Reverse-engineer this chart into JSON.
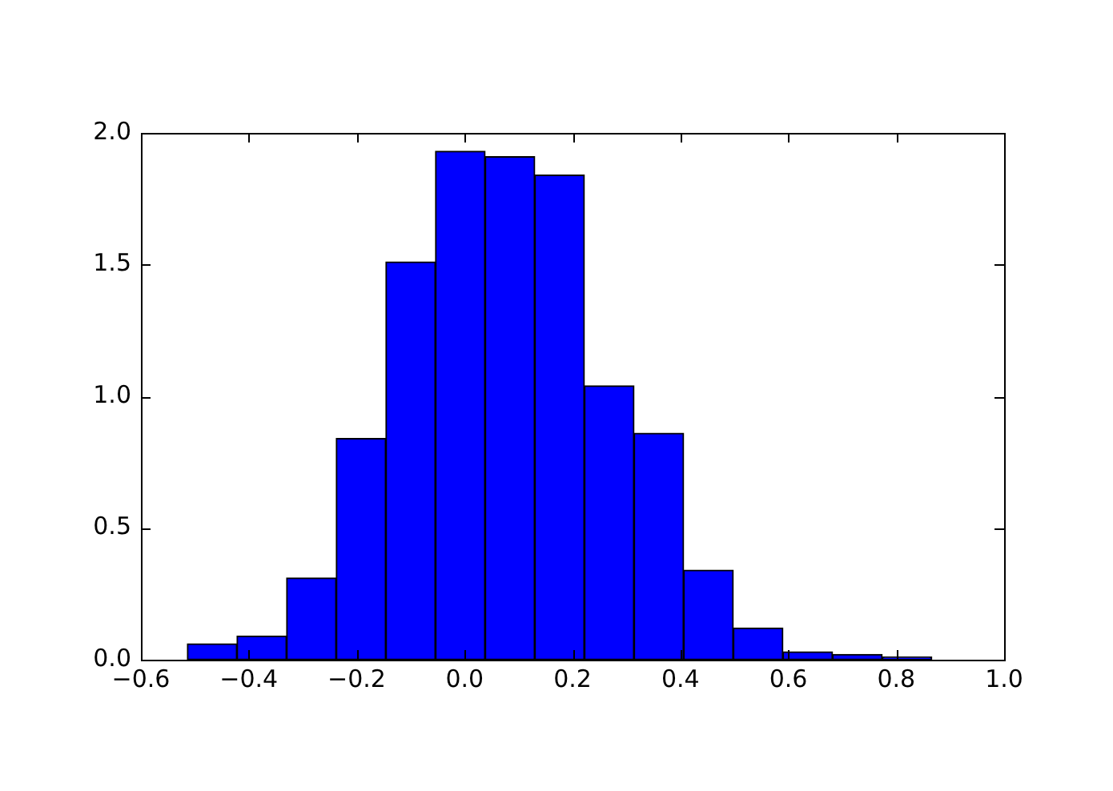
{
  "chart_data": {
    "type": "histogram",
    "bins": [
      -0.514,
      -0.422,
      -0.33,
      -0.238,
      -0.146,
      -0.054,
      0.038,
      0.13,
      0.222,
      0.314,
      0.406,
      0.498,
      0.59,
      0.682,
      0.774,
      0.866
    ],
    "values": [
      0.06,
      0.09,
      0.31,
      0.84,
      1.51,
      1.93,
      1.91,
      1.84,
      1.04,
      0.86,
      0.34,
      0.12,
      0.03,
      0.02,
      0.01
    ],
    "color": "#0000ff",
    "xlim": [
      -0.6,
      1.0
    ],
    "xticks": [
      {
        "value": -0.6,
        "label": "−0.6"
      },
      {
        "value": -0.4,
        "label": "−0.4"
      },
      {
        "value": -0.2,
        "label": "−0.2"
      },
      {
        "value": 0,
        "label": "0.0"
      },
      0.2,
      0.4,
      0.6,
      0.8,
      {
        "value": 1,
        "label": "1.0"
      }
    ],
    "ylim": [
      0,
      2.0
    ],
    "yticks": [
      {
        "value": 0,
        "label": "0.0"
      },
      0.5,
      {
        "value": 1,
        "label": "1.0"
      },
      1.5,
      {
        "value": 2,
        "label": "2.0"
      }
    ],
    "grid": false,
    "legend": false
  }
}
